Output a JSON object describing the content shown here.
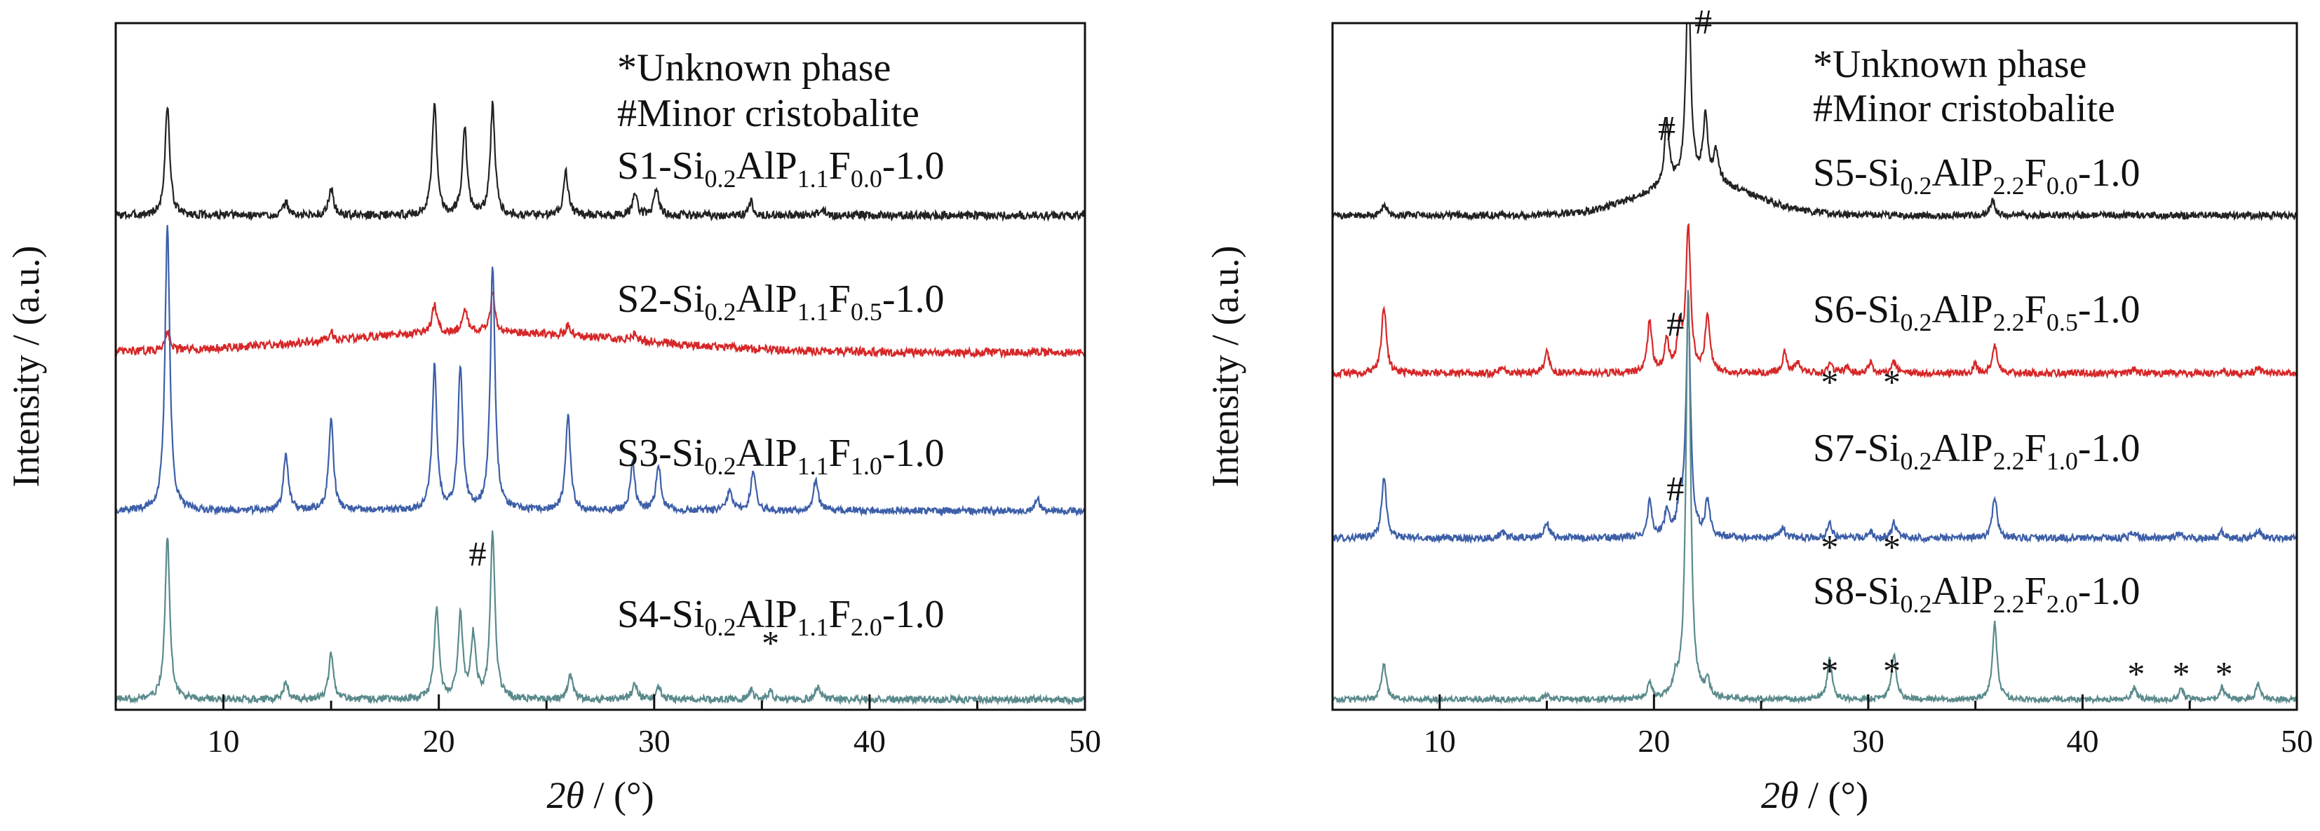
{
  "chart_data": [
    {
      "type": "line",
      "xlabel_italic": "2θ",
      "xlabel_rest": " / (°)",
      "ylabel": "Intensity / (a.u.)",
      "xlim": [
        5,
        50
      ],
      "xticks": [
        10,
        20,
        30,
        40,
        50
      ],
      "xtick_labels": [
        "10",
        "20",
        "30",
        "40",
        "50"
      ],
      "legend_lines": [
        "*Unknown phase",
        "#Minor cristobalite"
      ],
      "series": [
        {
          "color": "#222222",
          "baseline": 0.72,
          "scale": 0.16,
          "noise": 0.006,
          "hump": 0.0,
          "humpCenter": 22,
          "humpWidth": 6,
          "label": {
            "prefix": "S1-Si",
            "sub1": "0.2",
            "mid": "AlP",
            "sub2": "1.1",
            "mid2": "F",
            "sub3": "0.0",
            "suffix": "-1.0"
          },
          "peaks": [
            [
              7.4,
              1.0
            ],
            [
              12.9,
              0.12
            ],
            [
              15.0,
              0.25
            ],
            [
              19.8,
              1.0
            ],
            [
              21.2,
              0.8
            ],
            [
              22.5,
              1.0
            ],
            [
              25.9,
              0.4
            ],
            [
              29.1,
              0.2
            ],
            [
              30.1,
              0.25
            ],
            [
              34.5,
              0.12
            ],
            [
              37.8,
              0.06
            ]
          ]
        },
        {
          "color": "#d62728",
          "baseline": 0.52,
          "scale": 0.12,
          "noise": 0.006,
          "hump": 0.03,
          "humpCenter": 22,
          "humpWidth": 7,
          "label": {
            "prefix": "S2-Si",
            "sub1": "0.2",
            "mid": "AlP",
            "sub2": "1.1",
            "mid2": "F",
            "sub3": "0.5",
            "suffix": "-1.0"
          },
          "peaks": [
            [
              7.4,
              0.25
            ],
            [
              15.0,
              0.1
            ],
            [
              19.8,
              0.35
            ],
            [
              21.2,
              0.3
            ],
            [
              22.5,
              0.45
            ],
            [
              26.0,
              0.12
            ],
            [
              29.1,
              0.08
            ]
          ]
        },
        {
          "color": "#3d5fa8",
          "baseline": 0.29,
          "scale": 0.42,
          "noise": 0.005,
          "hump": 0.0,
          "humpCenter": 22,
          "humpWidth": 6,
          "label": {
            "prefix": "S3-Si",
            "sub1": "0.2",
            "mid": "AlP",
            "sub2": "1.1",
            "mid2": "F",
            "sub3": "1.0",
            "suffix": "-1.0"
          },
          "peaks": [
            [
              7.4,
              1.0
            ],
            [
              12.9,
              0.2
            ],
            [
              15.0,
              0.32
            ],
            [
              19.8,
              0.5
            ],
            [
              21.0,
              0.5
            ],
            [
              22.5,
              0.85
            ],
            [
              26.0,
              0.33
            ],
            [
              29.0,
              0.16
            ],
            [
              30.2,
              0.16
            ],
            [
              33.5,
              0.07
            ],
            [
              34.6,
              0.14
            ],
            [
              37.5,
              0.11
            ],
            [
              47.8,
              0.04
            ]
          ]
        },
        {
          "color": "#5a8a8c",
          "baseline": 0.015,
          "scale": 0.24,
          "noise": 0.005,
          "hump": 0.0,
          "humpCenter": 22,
          "humpWidth": 6,
          "label": {
            "prefix": "S4-Si",
            "sub1": "0.2",
            "mid": "AlP",
            "sub2": "1.1",
            "mid2": "F",
            "sub3": "2.0",
            "suffix": "-1.0"
          },
          "peaks": [
            [
              7.4,
              1.0
            ],
            [
              12.9,
              0.1
            ],
            [
              15.0,
              0.28
            ],
            [
              19.9,
              0.55
            ],
            [
              21.0,
              0.5
            ],
            [
              21.6,
              0.38
            ],
            [
              22.5,
              1.0
            ],
            [
              26.1,
              0.15
            ],
            [
              29.1,
              0.1
            ],
            [
              30.2,
              0.08
            ],
            [
              34.5,
              0.06
            ],
            [
              35.4,
              0.05
            ],
            [
              37.6,
              0.07
            ]
          ]
        }
      ],
      "markers": [
        {
          "symbol": "#",
          "x": 21.8,
          "y": 0.21
        },
        {
          "symbol": "*",
          "x": 35.4,
          "y": 0.08
        }
      ]
    },
    {
      "type": "line",
      "xlabel_italic": "2θ",
      "xlabel_rest": " / (°)",
      "ylabel": "Intensity / (a.u.)",
      "xlim": [
        5,
        50
      ],
      "xticks": [
        10,
        20,
        30,
        40,
        50
      ],
      "xtick_labels": [
        "10",
        "20",
        "30",
        "40",
        "50"
      ],
      "legend_lines": [
        "*Unknown phase",
        "#Minor cristobalite"
      ],
      "series": [
        {
          "color": "#222222",
          "baseline": 0.72,
          "scale": 0.3,
          "noise": 0.005,
          "hump": 0.05,
          "humpCenter": 22,
          "humpWidth": 2.5,
          "label": {
            "prefix": "S5-Si",
            "sub1": "0.2",
            "mid": "AlP",
            "sub2": "2.2",
            "mid2": "F",
            "sub3": "0.0",
            "suffix": "-1.0"
          },
          "peaks": [
            [
              7.4,
              0.05
            ],
            [
              20.6,
              0.3
            ],
            [
              21.6,
              1.0
            ],
            [
              22.4,
              0.3
            ],
            [
              22.9,
              0.15
            ],
            [
              35.8,
              0.08
            ]
          ]
        },
        {
          "color": "#d62728",
          "baseline": 0.49,
          "scale": 0.15,
          "noise": 0.005,
          "hump": 0.0,
          "humpCenter": 22,
          "humpWidth": 6,
          "label": {
            "prefix": "S6-Si",
            "sub1": "0.2",
            "mid": "AlP",
            "sub2": "2.2",
            "mid2": "F",
            "sub3": "0.5",
            "suffix": "-1.0"
          },
          "peaks": [
            [
              7.4,
              0.65
            ],
            [
              12.9,
              0.06
            ],
            [
              15.0,
              0.2
            ],
            [
              19.8,
              0.5
            ],
            [
              20.6,
              0.3
            ],
            [
              21.2,
              0.4
            ],
            [
              21.6,
              1.4
            ],
            [
              22.5,
              0.55
            ],
            [
              26.1,
              0.2
            ],
            [
              26.7,
              0.1
            ],
            [
              28.2,
              0.1
            ],
            [
              29.0,
              0.06
            ],
            [
              30.1,
              0.1
            ],
            [
              31.2,
              0.1
            ],
            [
              35.0,
              0.08
            ],
            [
              35.9,
              0.27
            ],
            [
              42.4,
              0.04
            ],
            [
              46.5,
              0.04
            ],
            [
              48.2,
              0.05
            ]
          ]
        },
        {
          "color": "#3d5fa8",
          "baseline": 0.25,
          "scale": 0.15,
          "noise": 0.005,
          "hump": 0.0,
          "humpCenter": 22,
          "humpWidth": 6,
          "label": {
            "prefix": "S7-Si",
            "sub1": "0.2",
            "mid": "AlP",
            "sub2": "2.2",
            "mid2": "F",
            "sub3": "1.0",
            "suffix": "-1.0"
          },
          "peaks": [
            [
              7.4,
              0.6
            ],
            [
              12.9,
              0.06
            ],
            [
              15.0,
              0.15
            ],
            [
              19.8,
              0.35
            ],
            [
              20.6,
              0.25
            ],
            [
              21.2,
              0.3
            ],
            [
              21.6,
              2.2
            ],
            [
              22.5,
              0.35
            ],
            [
              26.0,
              0.1
            ],
            [
              28.2,
              0.15
            ],
            [
              30.1,
              0.06
            ],
            [
              31.2,
              0.15
            ],
            [
              35.9,
              0.4
            ],
            [
              42.4,
              0.06
            ],
            [
              44.5,
              0.05
            ],
            [
              46.5,
              0.06
            ],
            [
              48.2,
              0.08
            ]
          ]
        },
        {
          "color": "#5a8a8c",
          "baseline": 0.015,
          "scale": 0.15,
          "noise": 0.004,
          "hump": 0.0,
          "humpCenter": 22,
          "humpWidth": 6,
          "label": {
            "prefix": "S8-Si",
            "sub1": "0.2",
            "mid": "AlP",
            "sub2": "2.2",
            "mid2": "F",
            "sub3": "2.0",
            "suffix": "-1.0"
          },
          "peaks": [
            [
              7.4,
              0.35
            ],
            [
              15.0,
              0.05
            ],
            [
              19.8,
              0.15
            ],
            [
              21.0,
              0.15
            ],
            [
              21.6,
              4.0
            ],
            [
              22.5,
              0.15
            ],
            [
              28.2,
              0.4
            ],
            [
              31.2,
              0.45
            ],
            [
              35.9,
              0.75
            ],
            [
              42.4,
              0.12
            ],
            [
              44.6,
              0.1
            ],
            [
              46.5,
              0.12
            ],
            [
              48.2,
              0.15
            ]
          ]
        }
      ],
      "markers": [
        {
          "symbol": "#",
          "x": 22.3,
          "y": 0.985
        },
        {
          "symbol": "#",
          "x": 20.6,
          "y": 0.83
        },
        {
          "symbol": "#",
          "x": 21.0,
          "y": 0.545
        },
        {
          "symbol": "*",
          "x": 28.2,
          "y": 0.46
        },
        {
          "symbol": "*",
          "x": 31.1,
          "y": 0.46
        },
        {
          "symbol": "#",
          "x": 21.0,
          "y": 0.305
        },
        {
          "symbol": "*",
          "x": 28.2,
          "y": 0.22
        },
        {
          "symbol": "*",
          "x": 31.1,
          "y": 0.22
        },
        {
          "symbol": "*",
          "x": 28.2,
          "y": 0.04
        },
        {
          "symbol": "*",
          "x": 31.1,
          "y": 0.04
        },
        {
          "symbol": "*",
          "x": 42.5,
          "y": 0.035
        },
        {
          "symbol": "*",
          "x": 44.6,
          "y": 0.035
        },
        {
          "symbol": "*",
          "x": 46.6,
          "y": 0.035
        }
      ]
    }
  ]
}
